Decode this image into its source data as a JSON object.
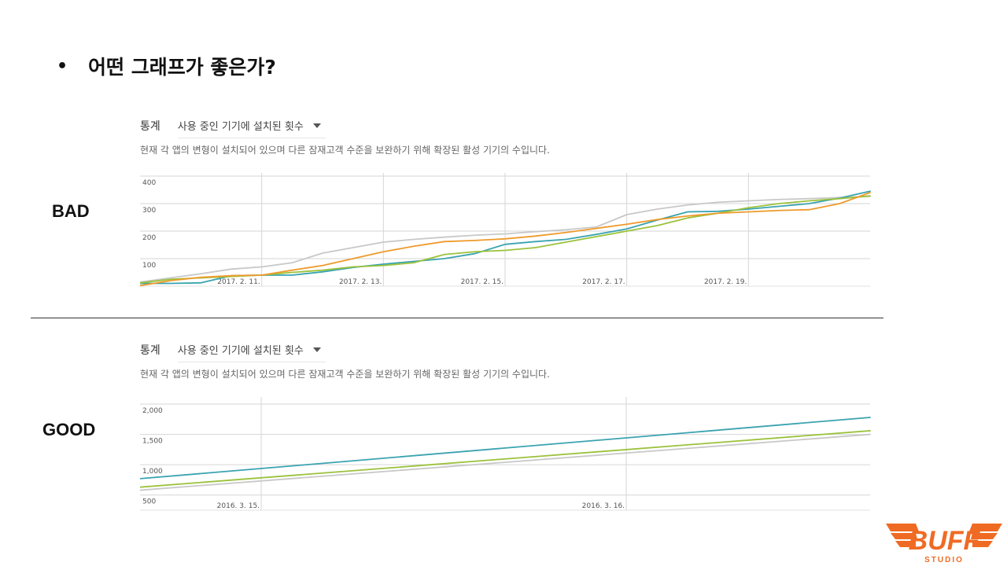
{
  "slide": {
    "bullet": "•",
    "title": "어떤 그래프가 좋은가?",
    "bad_label": "BAD",
    "good_label": "GOOD"
  },
  "panels": [
    {
      "stat_label": "통계",
      "select_value": "사용 중인 기기에 설치된 횟수",
      "description": "현재 각 앱의 변형이 설치되어 있으며 다른 잠재고객 수준을 보완하기 위해 확장된 활성 기기의 수입니다."
    },
    {
      "stat_label": "통계",
      "select_value": "사용 중인 기기에 설치된 횟수",
      "description": "현재 각 앱의 변형이 설치되어 있으며 다른 잠재고객 수준을 보완하기 위해 확장된 활성 기기의 수입니다."
    }
  ],
  "colors": {
    "teal": "#3aa3b0",
    "green": "#9bc23c",
    "gray": "#c8c8c8",
    "orange": "#ee9a2b"
  },
  "logo": {
    "text": "BUFF",
    "sub": "STUDIO",
    "color": "#ef6b23"
  },
  "chart_data": [
    {
      "type": "line",
      "x": [
        0,
        0.5,
        1,
        1.5,
        2,
        2.5,
        3,
        3.5,
        4,
        4.5,
        5,
        5.5,
        6,
        6.5,
        7,
        7.5,
        8,
        8.5,
        9,
        9.5,
        10,
        10.5,
        11,
        11.5,
        12
      ],
      "xlim": [
        0,
        12
      ],
      "x_ticks": [
        {
          "pos": 2,
          "label": "2017. 2. 11."
        },
        {
          "pos": 4,
          "label": "2017. 2. 13."
        },
        {
          "pos": 6,
          "label": "2017. 2. 15."
        },
        {
          "pos": 8,
          "label": "2017. 2. 17."
        },
        {
          "pos": 10,
          "label": "2017. 2. 19."
        }
      ],
      "ylim": [
        0,
        400
      ],
      "y_ticks": [
        100,
        200,
        300,
        400
      ],
      "y_tick_labels": [
        "100",
        "200",
        "300",
        "400"
      ],
      "grid": true,
      "series": [
        {
          "color": "#c8c8c8",
          "values": [
            15,
            30,
            45,
            62,
            70,
            85,
            120,
            140,
            160,
            170,
            178,
            185,
            190,
            198,
            205,
            215,
            260,
            280,
            295,
            305,
            310,
            315,
            318,
            322,
            326
          ]
        },
        {
          "color": "#3aa3b0",
          "values": [
            10,
            10,
            12,
            38,
            40,
            40,
            52,
            68,
            80,
            90,
            100,
            118,
            152,
            162,
            170,
            188,
            208,
            240,
            270,
            272,
            280,
            290,
            300,
            320,
            345
          ]
        },
        {
          "color": "#9bc23c",
          "values": [
            12,
            25,
            30,
            35,
            40,
            50,
            58,
            70,
            75,
            85,
            115,
            125,
            130,
            140,
            160,
            180,
            200,
            220,
            248,
            265,
            285,
            300,
            310,
            318,
            328
          ]
        },
        {
          "color": "#ee9a2b",
          "values": [
            2,
            20,
            32,
            38,
            40,
            58,
            75,
            100,
            125,
            145,
            162,
            166,
            172,
            182,
            195,
            210,
            225,
            242,
            255,
            265,
            270,
            275,
            278,
            300,
            340
          ]
        }
      ]
    },
    {
      "type": "line",
      "x": [
        0,
        1
      ],
      "xlim": [
        0,
        1
      ],
      "x_ticks": [
        {
          "pos": 0.166,
          "label": "2016. 3. 15."
        },
        {
          "pos": 0.666,
          "label": "2016. 3. 16."
        }
      ],
      "ylim": [
        250,
        2000
      ],
      "y_ticks": [
        500,
        1000,
        1500,
        2000
      ],
      "y_tick_labels": [
        "500",
        "1,000",
        "1,500",
        "2,000"
      ],
      "grid": true,
      "series": [
        {
          "color": "#3aa3b0",
          "values": [
            770,
            1780
          ]
        },
        {
          "color": "#9bc23c",
          "values": [
            630,
            1560
          ]
        },
        {
          "color": "#c8c8c8",
          "values": [
            580,
            1500
          ]
        }
      ]
    }
  ]
}
